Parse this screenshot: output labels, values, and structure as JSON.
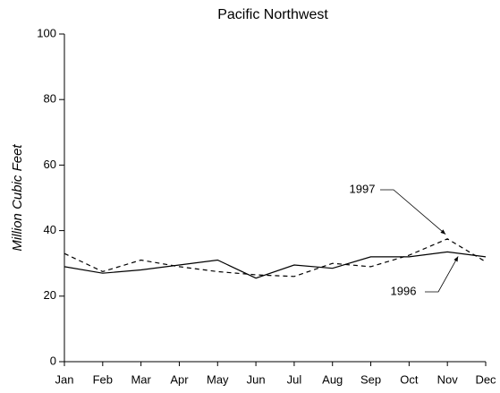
{
  "chart_data": {
    "type": "line",
    "title": "Pacific Northwest",
    "y_label": "Million Cubic Feet",
    "categories": [
      "Jan",
      "Feb",
      "Mar",
      "Apr",
      "May",
      "Jun",
      "Jul",
      "Aug",
      "Sep",
      "Oct",
      "Nov",
      "Dec"
    ],
    "series": [
      {
        "name": "1996",
        "color": "#000000",
        "dash": false,
        "values": [
          29,
          27,
          28,
          29.5,
          31,
          25.5,
          29.5,
          28.5,
          32,
          32,
          33.5,
          32
        ]
      },
      {
        "name": "1997",
        "color": "#000000",
        "dash": true,
        "values": [
          33,
          27.5,
          31,
          29,
          27.5,
          26.5,
          26,
          30,
          29,
          32.5,
          37.5,
          30.5
        ]
      }
    ],
    "ylim": [
      0,
      100
    ],
    "yticks": [
      0,
      20,
      40,
      60,
      80,
      100
    ],
    "grid": false
  }
}
